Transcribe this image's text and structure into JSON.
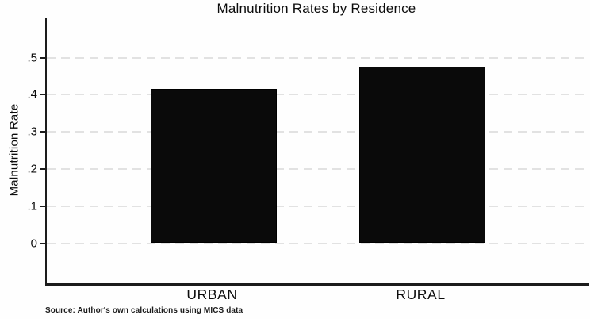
{
  "title": "Malnutrition Rates by Residence",
  "source_note": "Source: Author's own calculations using MICS data",
  "chart_data": {
    "type": "bar",
    "title": "Malnutrition Rates by Residence",
    "categories": [
      "URBAN",
      "RURAL"
    ],
    "values": [
      0.415,
      0.475
    ],
    "xlabel": "",
    "ylabel": "Malnutrition Rate",
    "ylim": [
      0,
      0.55
    ],
    "yticks": [
      {
        "value": 0.0,
        "label": "0"
      },
      {
        "value": 0.1,
        "label": ".1"
      },
      {
        "value": 0.2,
        "label": ".2"
      },
      {
        "value": 0.3,
        "label": ".3"
      },
      {
        "value": 0.4,
        "label": ".4"
      },
      {
        "value": 0.5,
        "label": ".5"
      }
    ],
    "grid": "horizontal-dashed",
    "legend": "none",
    "bar_color": "#0a0a0a",
    "gridline_color": "#e2e2e2",
    "axis_color": "#1c1c1c",
    "background_color": "#fefefe"
  }
}
